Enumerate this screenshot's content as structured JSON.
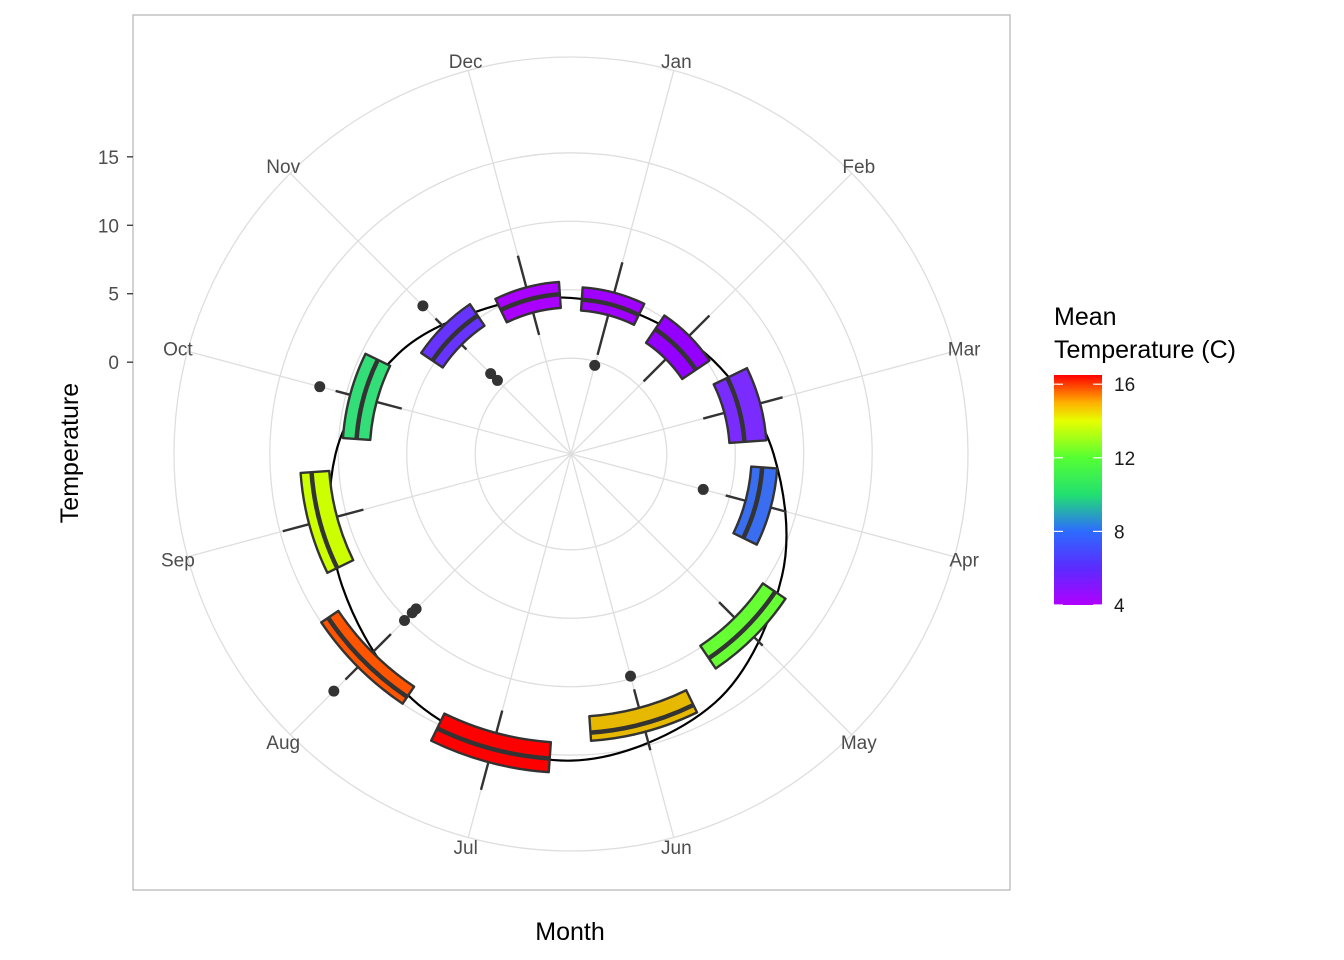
{
  "chart_data": {
    "type": "boxplot",
    "coord": "polar",
    "xlabel": "Month",
    "ylabel": "Temperature",
    "y_ticks": [
      0,
      5,
      10,
      15
    ],
    "ylim": [
      -7,
      22
    ],
    "grid": true,
    "legend": {
      "title_lines": [
        "Mean",
        "Temperature (C)"
      ],
      "placement": "right",
      "ticks": [
        16,
        12,
        8,
        4
      ],
      "range": [
        4,
        16.5
      ],
      "gradient_stops": [
        {
          "value": 4,
          "color": "#b000ff"
        },
        {
          "value": 6,
          "color": "#5b2bff"
        },
        {
          "value": 8,
          "color": "#2d6bff"
        },
        {
          "value": 10,
          "color": "#22e070"
        },
        {
          "value": 12,
          "color": "#55ff33"
        },
        {
          "value": 14,
          "color": "#e6ff00"
        },
        {
          "value": 15,
          "color": "#ffb000"
        },
        {
          "value": 16.5,
          "color": "#ff0000"
        }
      ]
    },
    "categories": [
      "Jan",
      "Feb",
      "Mar",
      "Apr",
      "May",
      "Jun",
      "Jul",
      "Aug",
      "Sep",
      "Oct",
      "Nov",
      "Dec"
    ],
    "boxes": [
      {
        "month": "Jan",
        "mean": 4.1,
        "whisker_low": 0.5,
        "q1": 3.5,
        "median": 4.3,
        "q3": 5.2,
        "whisker_high": 7.5,
        "outliers": [
          -0.3
        ],
        "color": "#a000ff"
      },
      {
        "month": "Feb",
        "mean": 4.6,
        "whisker_low": 0.5,
        "q1": 2.8,
        "median": 4.0,
        "q3": 5.2,
        "whisker_high": 7.3,
        "outliers": [],
        "color": "#9400ff"
      },
      {
        "month": "Mar",
        "mean": 6.4,
        "whisker_low": 3.0,
        "q1": 4.6,
        "median": 5.7,
        "q3": 7.3,
        "whisker_high": 9.0,
        "outliers": [],
        "color": "#7a2cff"
      },
      {
        "month": "Apr",
        "mean": 8.1,
        "whisker_low": 4.7,
        "q1": 6.2,
        "median": 7.0,
        "q3": 8.1,
        "whisker_high": 9.3,
        "outliers": [
          3.0
        ],
        "color": "#3a6ef0"
      },
      {
        "month": "May",
        "mean": 11.7,
        "whisker_low": 8.3,
        "q1": 9.9,
        "median": 11.0,
        "q3": 11.9,
        "whisker_high": 12.8,
        "outliers": [],
        "color": "#66ff33"
      },
      {
        "month": "Jun",
        "mean": 14.6,
        "whisker_low": 10.8,
        "q1": 12.2,
        "median": 13.4,
        "q3": 14.0,
        "whisker_high": 15.4,
        "outliers": [
          9.8
        ],
        "color": "#e6b800"
      },
      {
        "month": "Jul",
        "mean": 16.4,
        "whisker_low": 12.4,
        "q1": 14.1,
        "median": 15.3,
        "q3": 16.3,
        "whisker_high": 18.4,
        "outliers": [],
        "color": "#ff0000"
      },
      {
        "month": "Aug",
        "mean": 15.4,
        "whisker_low": 11.6,
        "q1": 13.5,
        "median": 14.4,
        "q3": 15.0,
        "whisker_high": 16.3,
        "outliers": [
          9.0,
          9.4,
          10.2,
          17.5
        ],
        "color": "#ff5500"
      },
      {
        "month": "Sep",
        "mean": 13.6,
        "whisker_low": 8.7,
        "q1": 10.7,
        "median": 12.0,
        "q3": 12.8,
        "whisker_high": 14.8,
        "outliers": [],
        "color": "#ccff00"
      },
      {
        "month": "Oct",
        "mean": 10.8,
        "whisker_low": 5.8,
        "q1": 7.7,
        "median": 8.7,
        "q3": 9.7,
        "whisker_high": 10.8,
        "outliers": [
          12.0
        ],
        "color": "#33dd77"
      },
      {
        "month": "Nov",
        "mean": 5.6,
        "whisker_low": 3.8,
        "q1": 4.3,
        "median": 5.2,
        "q3": 6.2,
        "whisker_high": 7.0,
        "outliers": [
          0.6,
          1.3,
          8.3
        ],
        "color": "#6633ff"
      },
      {
        "month": "Dec",
        "mean": 4.3,
        "whisker_low": 2.0,
        "q1": 3.7,
        "median": 4.7,
        "q3": 5.6,
        "whisker_high": 8.0,
        "outliers": [],
        "color": "#aa00ff"
      }
    ],
    "mean_curve": [
      {
        "angle_deg": 0,
        "value": 4.4
      },
      {
        "angle_deg": 30,
        "value": 4.4
      },
      {
        "angle_deg": 60,
        "value": 5.6
      },
      {
        "angle_deg": 90,
        "value": 7.8
      },
      {
        "angle_deg": 120,
        "value": 10.8
      },
      {
        "angle_deg": 150,
        "value": 14.0
      },
      {
        "angle_deg": 180,
        "value": 15.4
      },
      {
        "angle_deg": 210,
        "value": 14.5
      },
      {
        "angle_deg": 240,
        "value": 12.3
      },
      {
        "angle_deg": 270,
        "value": 10.2
      },
      {
        "angle_deg": 300,
        "value": 7.6
      },
      {
        "angle_deg": 330,
        "value": 5.3
      }
    ]
  }
}
